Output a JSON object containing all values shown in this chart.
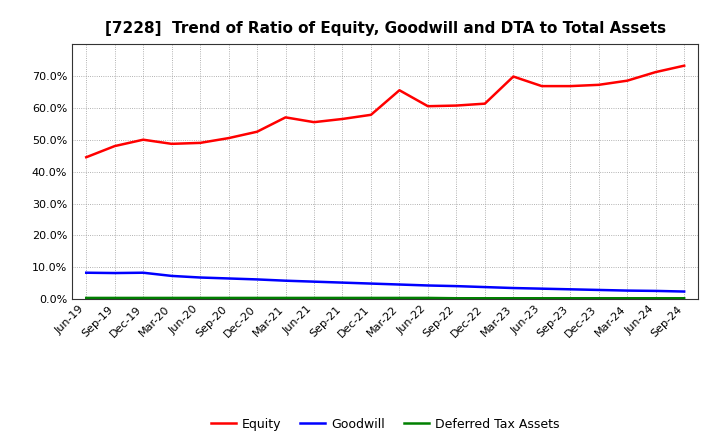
{
  "title": "[7228]  Trend of Ratio of Equity, Goodwill and DTA to Total Assets",
  "x_labels": [
    "Jun-19",
    "Sep-19",
    "Dec-19",
    "Mar-20",
    "Jun-20",
    "Sep-20",
    "Dec-20",
    "Mar-21",
    "Jun-21",
    "Sep-21",
    "Dec-21",
    "Mar-22",
    "Jun-22",
    "Sep-22",
    "Dec-22",
    "Mar-23",
    "Jun-23",
    "Sep-23",
    "Dec-23",
    "Mar-24",
    "Jun-24",
    "Sep-24"
  ],
  "equity": [
    0.445,
    0.48,
    0.5,
    0.487,
    0.49,
    0.505,
    0.525,
    0.57,
    0.555,
    0.565,
    0.578,
    0.655,
    0.605,
    0.607,
    0.613,
    0.698,
    0.668,
    0.668,
    0.672,
    0.685,
    0.712,
    0.732
  ],
  "goodwill": [
    0.083,
    0.082,
    0.083,
    0.073,
    0.068,
    0.065,
    0.062,
    0.058,
    0.055,
    0.052,
    0.049,
    0.046,
    0.043,
    0.041,
    0.038,
    0.035,
    0.033,
    0.031,
    0.029,
    0.027,
    0.026,
    0.024
  ],
  "dta": [
    0.004,
    0.004,
    0.004,
    0.004,
    0.004,
    0.004,
    0.004,
    0.004,
    0.004,
    0.004,
    0.004,
    0.004,
    0.004,
    0.003,
    0.003,
    0.003,
    0.003,
    0.003,
    0.003,
    0.003,
    0.003,
    0.003
  ],
  "equity_color": "#FF0000",
  "goodwill_color": "#0000FF",
  "dta_color": "#008000",
  "background_color": "#FFFFFF",
  "plot_bg_color": "#FFFFFF",
  "grid_color": "#999999",
  "ylim": [
    0.0,
    0.8
  ],
  "yticks": [
    0.0,
    0.1,
    0.2,
    0.3,
    0.4,
    0.5,
    0.6,
    0.7
  ],
  "legend_labels": [
    "Equity",
    "Goodwill",
    "Deferred Tax Assets"
  ],
  "title_fontsize": 11,
  "tick_fontsize": 8,
  "legend_fontsize": 9
}
